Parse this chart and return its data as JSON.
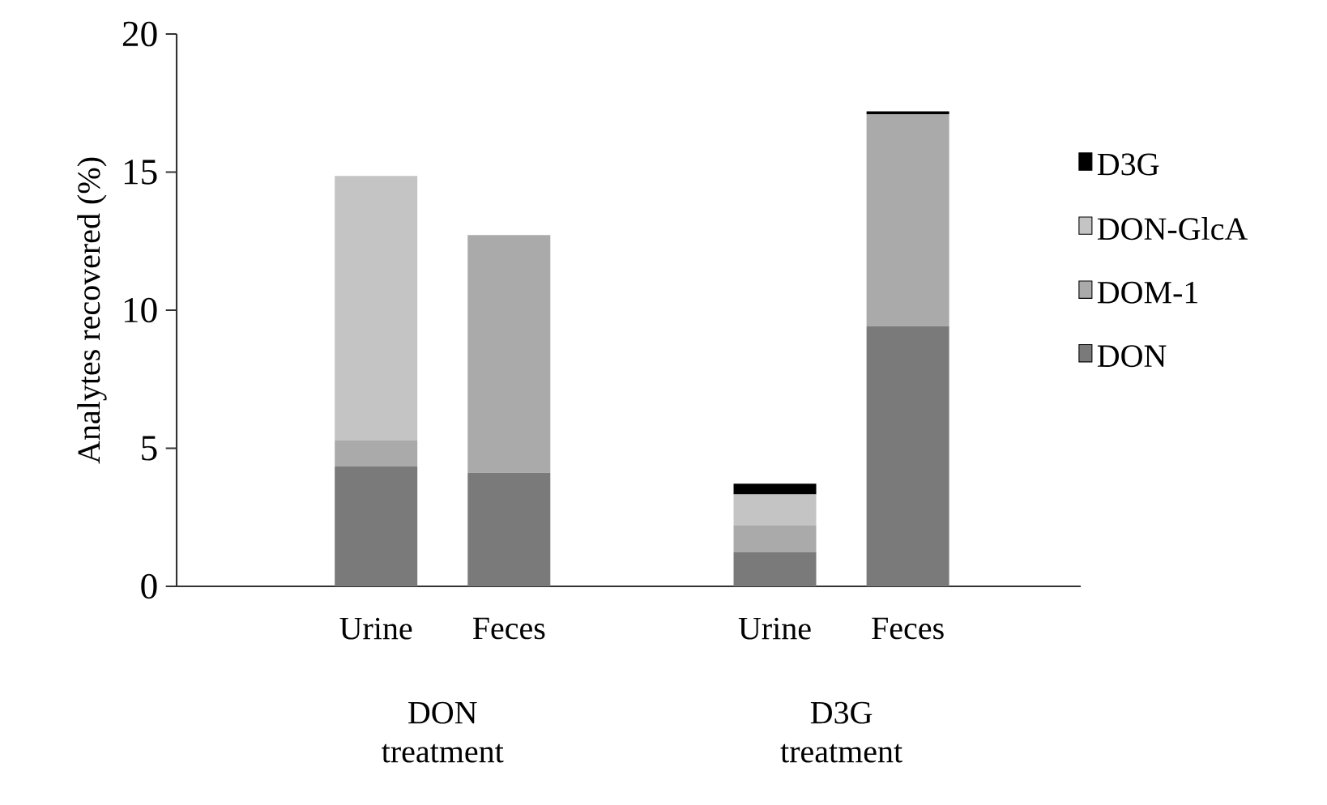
{
  "chart_data": {
    "type": "bar",
    "stacked": true,
    "ylabel": "Analytes recovered (%)",
    "categories": [
      "Urine",
      "Feces",
      null,
      "Urine",
      "Feces"
    ],
    "series": [
      {
        "name": "DON",
        "color": "#7a7a7a",
        "values": [
          4.35,
          4.11,
          null,
          1.23,
          9.42
        ]
      },
      {
        "name": "DOM-1",
        "color": "#aaaaaa",
        "values": [
          0.93,
          8.61,
          null,
          0.97,
          7.67
        ]
      },
      {
        "name": "DON-GlcA",
        "color": "#c4c4c4",
        "values": [
          9.58,
          0,
          null,
          1.13,
          0
        ]
      },
      {
        "name": "D3G",
        "color": "#000000",
        "values": [
          0,
          0,
          null,
          0.39,
          0.11
        ]
      }
    ],
    "ylim": [
      0,
      20
    ],
    "yticks": [
      0,
      5,
      10,
      15,
      20
    ],
    "legend": "right",
    "grid": false,
    "annotations": [
      "DON treatment",
      "D3G treatment"
    ]
  }
}
